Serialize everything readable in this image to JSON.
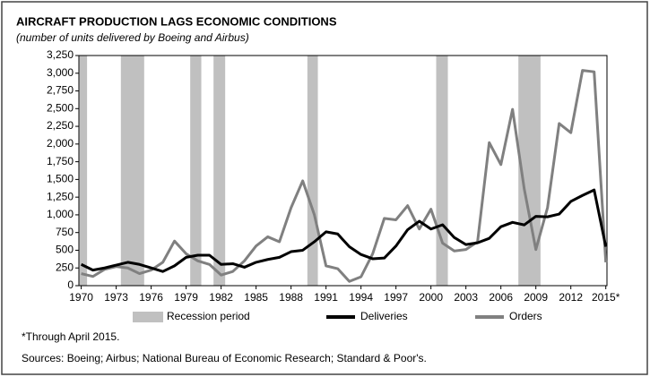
{
  "chart_data": {
    "type": "line",
    "title": "AIRCRAFT PRODUCTION LAGS ECONOMIC CONDITIONS",
    "subtitle": "(number of units delivered by Boeing and Airbus)",
    "x": [
      1970,
      1971,
      1972,
      1973,
      1974,
      1975,
      1976,
      1977,
      1978,
      1979,
      1980,
      1981,
      1982,
      1983,
      1984,
      1985,
      1986,
      1987,
      1988,
      1989,
      1990,
      1991,
      1992,
      1993,
      1994,
      1995,
      1996,
      1997,
      1998,
      1999,
      2000,
      2001,
      2002,
      2003,
      2004,
      2005,
      2006,
      2007,
      2008,
      2009,
      2010,
      2011,
      2012,
      2013,
      2014,
      2015
    ],
    "series": [
      {
        "name": "Deliveries",
        "color": "#000000",
        "values": [
          300,
          220,
          250,
          290,
          330,
          300,
          250,
          200,
          280,
          400,
          430,
          430,
          300,
          310,
          260,
          330,
          370,
          400,
          480,
          500,
          620,
          760,
          730,
          550,
          440,
          380,
          390,
          560,
          790,
          910,
          800,
          860,
          680,
          580,
          605,
          668,
          832,
          894,
          858,
          979,
          972,
          1011,
          1189,
          1274,
          1352,
          550
        ]
      },
      {
        "name": "Orders",
        "color": "#808080",
        "values": [
          170,
          130,
          230,
          270,
          250,
          170,
          220,
          330,
          630,
          450,
          350,
          300,
          150,
          200,
          350,
          560,
          690,
          620,
          1100,
          1480,
          1000,
          280,
          240,
          60,
          125,
          450,
          950,
          930,
          1130,
          800,
          1080,
          600,
          490,
          510,
          620,
          2020,
          1710,
          2490,
          1370,
          510,
          1100,
          2290,
          2160,
          3040,
          3020,
          330
        ]
      }
    ],
    "recession_legend": "Recession period",
    "recession_color": "#c0c0c0",
    "recessions": [
      [
        1969.85,
        1970.5
      ],
      [
        1973.4,
        1975.4
      ],
      [
        1979.35,
        1980.3
      ],
      [
        1981.35,
        1982.35
      ],
      [
        1989.4,
        1990.3
      ],
      [
        2000.45,
        2001.45
      ],
      [
        2007.5,
        2009.4
      ]
    ],
    "xlim": [
      1969.8,
      2015.1
    ],
    "xticks": [
      1970,
      1973,
      1976,
      1979,
      1982,
      1985,
      1988,
      1991,
      1994,
      1997,
      2000,
      2003,
      2006,
      2009,
      2012,
      {
        "value": 2015,
        "label": "2015*"
      }
    ],
    "ylim": [
      0,
      3250
    ],
    "yticks": [
      0,
      {
        "value": 250,
        "label": "250"
      },
      {
        "value": 500,
        "label": "500"
      },
      {
        "value": 750,
        "label": "750"
      },
      {
        "value": 1000,
        "label": "1,000"
      },
      {
        "value": 1250,
        "label": "1,250"
      },
      {
        "value": 1500,
        "label": "1,500"
      },
      {
        "value": 1750,
        "label": "1,750"
      },
      {
        "value": 2000,
        "label": "2,000"
      },
      {
        "value": 2250,
        "label": "2,250"
      },
      {
        "value": 2500,
        "label": "2,500"
      },
      {
        "value": 2750,
        "label": "2,750"
      },
      {
        "value": 3000,
        "label": "3,000"
      },
      {
        "value": 3250,
        "label": "3,250"
      }
    ],
    "footnote": "*Through April 2015.",
    "sources": "Sources: Boeing; Airbus; National Bureau of Economic Research; Standard & Poor's."
  }
}
